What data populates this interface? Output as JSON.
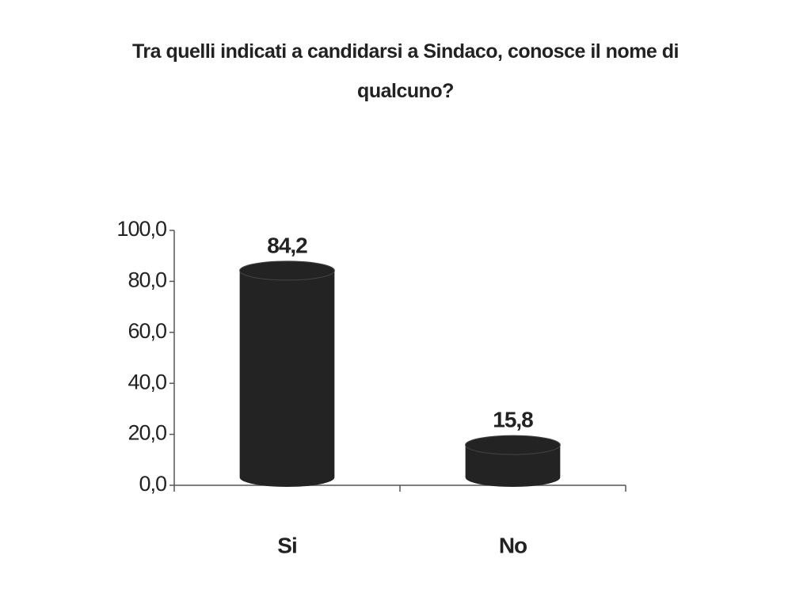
{
  "chart_data": {
    "type": "bar",
    "title": "Tra quelli indicati a candidarsi a Sindaco, conosce il nome di qualcuno?",
    "categories": [
      "Si",
      "No"
    ],
    "values": [
      84.2,
      15.8
    ],
    "value_labels": [
      "84,2",
      "15,8"
    ],
    "color": "#232323",
    "ylim": [
      0,
      100
    ],
    "yticks": [
      {
        "value": 0,
        "label": "0,0"
      },
      {
        "value": 20,
        "label": "20,0"
      },
      {
        "value": 40,
        "label": "40,0"
      },
      {
        "value": 60,
        "label": "60,0"
      },
      {
        "value": 80,
        "label": "80,0"
      },
      {
        "value": 100,
        "label": "100,0"
      }
    ],
    "grid": false
  }
}
